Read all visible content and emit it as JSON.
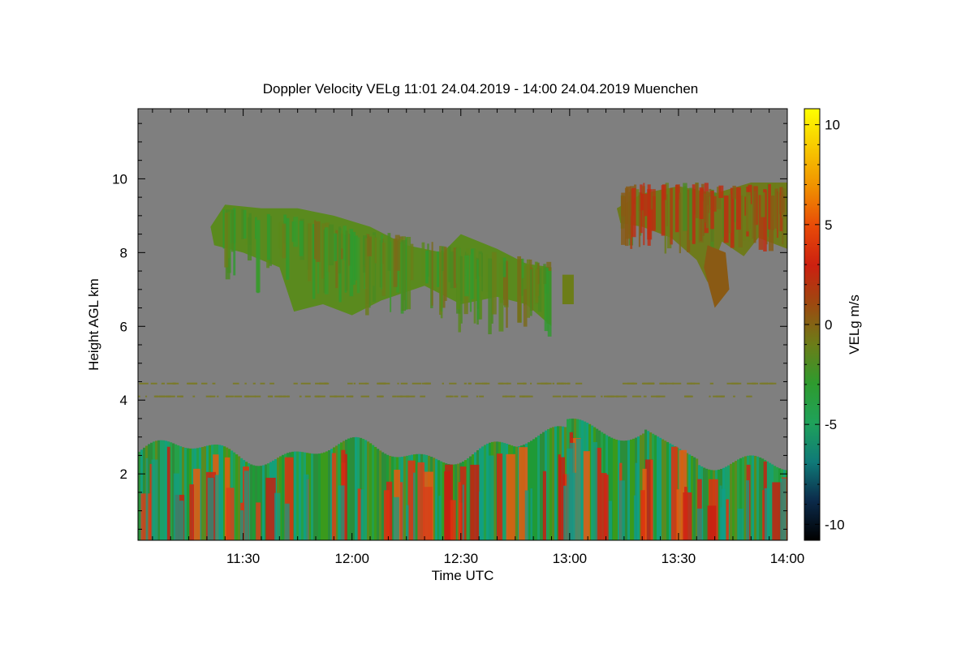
{
  "chart_data": {
    "type": "heatmap",
    "title": "Doppler Velocity VELg   11:01 24.04.2019 - 14:00 24.04.2019 Muenchen",
    "xlabel": "Time UTC",
    "ylabel": "Height AGL km",
    "x_range": [
      "11:01",
      "14:00"
    ],
    "x_ticks": [
      "11:30",
      "12:00",
      "12:30",
      "13:00",
      "13:30",
      "14:00"
    ],
    "ylim": [
      0.2,
      11.9
    ],
    "y_ticks": [
      2,
      4,
      6,
      8,
      10
    ],
    "colorbar": {
      "label": "VELg m/s",
      "range": [
        -10.8,
        10.8
      ],
      "ticks": [
        10,
        5,
        0,
        -5,
        -10
      ],
      "colors": [
        "#000000",
        "#0b2a4a",
        "#0f7a78",
        "#1fa25a",
        "#2e9b2e",
        "#6c7d18",
        "#9c4a10",
        "#cc2010",
        "#e84a08",
        "#f09000",
        "#f7c800",
        "#ffff00"
      ]
    },
    "background_color": "#7f7f7f",
    "features": [
      {
        "region": "boundary layer",
        "time": [
          "11:01",
          "14:00"
        ],
        "height_km": [
          0.2,
          3.5
        ],
        "velocity": "mixed, -5 to 5 m/s"
      },
      {
        "region": "thin layer",
        "time": [
          "11:01",
          "14:00"
        ],
        "height_km": [
          4.0,
          4.5
        ],
        "velocity": "about 0 m/s"
      },
      {
        "region": "cirrus cloud",
        "time": [
          "11:20",
          "13:02"
        ],
        "height_km": [
          6.0,
          9.3
        ],
        "velocity": "about -1 to 1 m/s"
      },
      {
        "region": "cirrus cloud",
        "time": [
          "13:13",
          "14:00"
        ],
        "height_km": [
          6.8,
          10.0
        ],
        "velocity": "about 0 to 2 m/s"
      }
    ],
    "grid": false
  }
}
